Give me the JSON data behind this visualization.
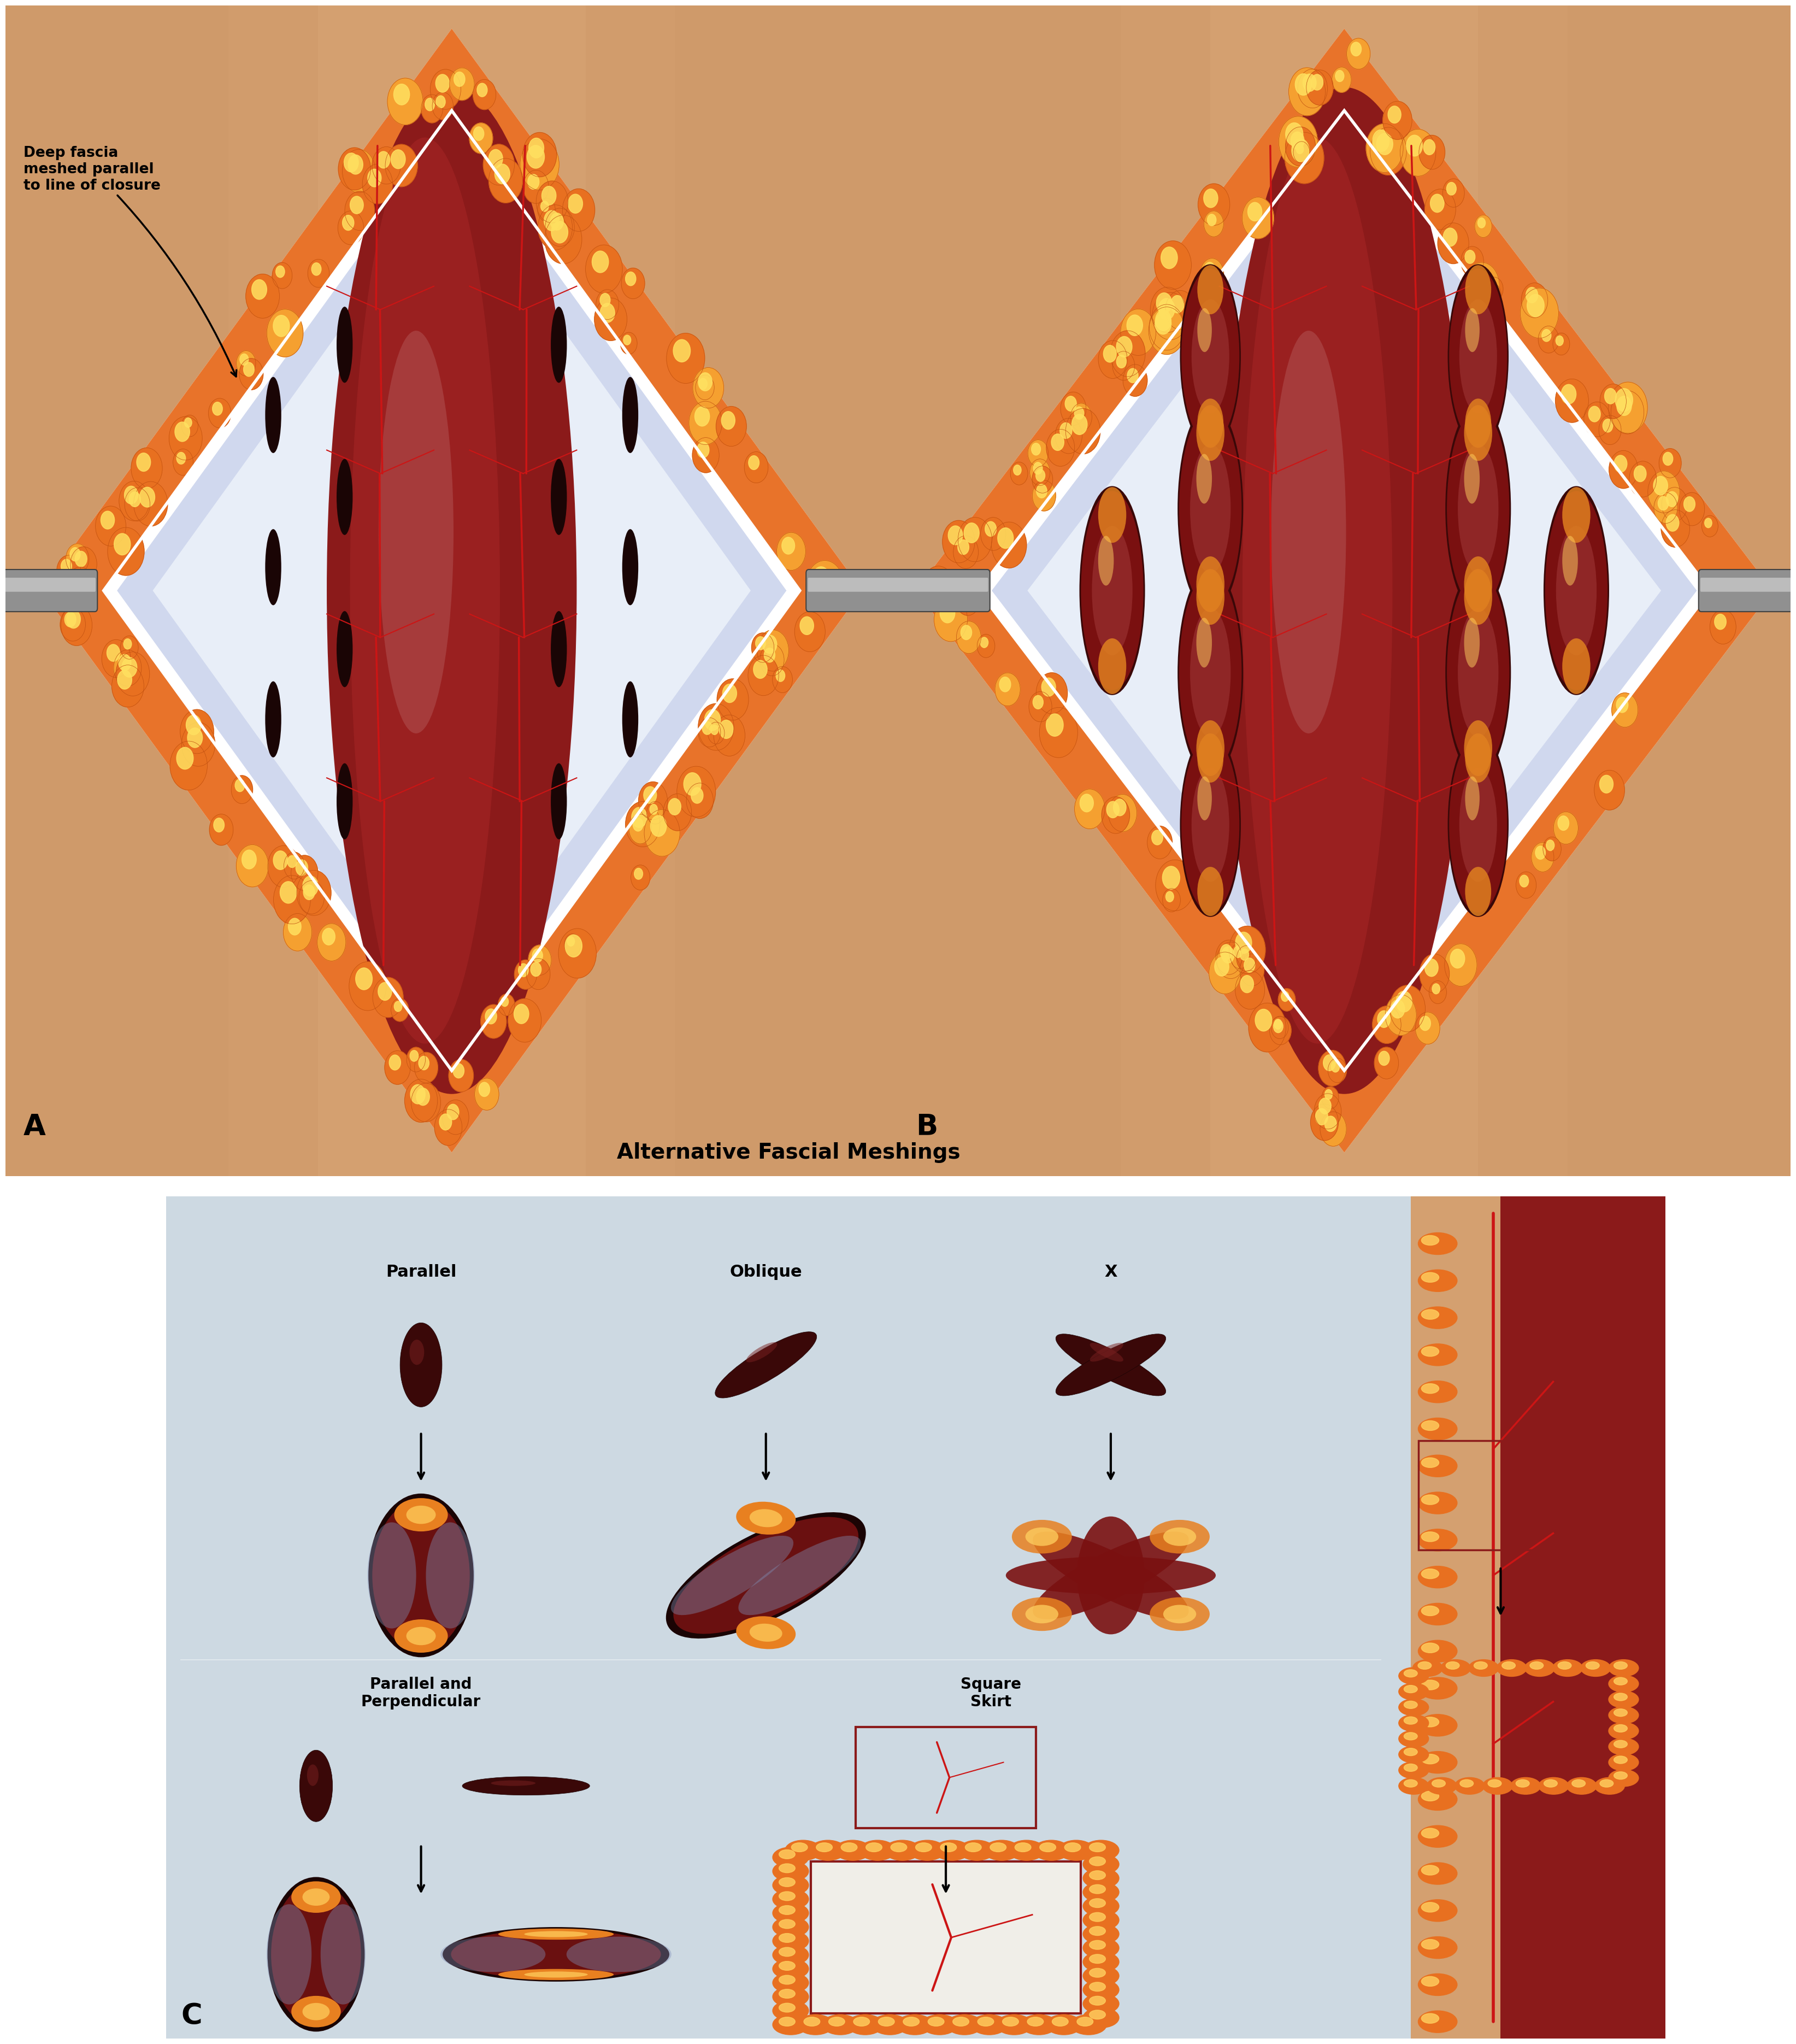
{
  "bg_color": "#ffffff",
  "skin_color": "#D4A070",
  "skin_dark": "#C08858",
  "fat_color": "#E8732A",
  "fat_highlight": "#FFD070",
  "fascia_color": "#C8D4E8",
  "fascia_light": "#E0E8F4",
  "muscle_color": "#8B1A1A",
  "muscle_mid": "#A52020",
  "muscle_light": "#C03030",
  "vessel_color": "#CC1515",
  "cut_color": "#1A0505",
  "retractor_color": "#888888",
  "retractor_shine": "#C8C8C8",
  "panel_c_bg": "#CDD9E2",
  "white": "#ffffff",
  "title_text": "Alternative Fascial Meshings",
  "label_a": "A",
  "label_b": "B",
  "label_c": "C",
  "annotation_text": "Deep fascia\nmeshed parallel\nto line of closure",
  "col1_label": "Parallel",
  "col2_label": "Oblique",
  "col3_label": "X",
  "row2_label1": "Parallel and\nPerpendicular",
  "row2_label3": "Square\nSkirt"
}
